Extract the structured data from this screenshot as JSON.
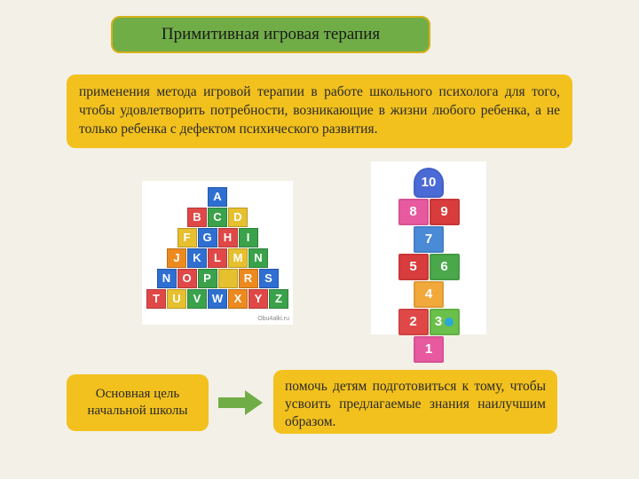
{
  "colors": {
    "page_bg": "#f3f0e7",
    "title_bg": "#70ad47",
    "title_border": "#d4b01a",
    "box_bg": "#f2c11e",
    "arrow_fill": "#70ad47",
    "text": "#2a2a2a"
  },
  "typography": {
    "title_fontsize": 19,
    "body_fontsize": 15.5,
    "goal_fontsize": 15,
    "font_family": "Georgia, Times New Roman, serif"
  },
  "title": "Примитивная игровая терапия",
  "description": "применения метода игровой терапии в работе школьного психолога для того, чтобы удовлетворить потребности, возникающие в жизни любого ребенка, а не только ребенка с дефектом психического развития.",
  "goal_label": "Основная цель начальной школы",
  "result_text": "помочь детям подготовиться к тому, чтобы усвоить предлагаемые знания наилучшим образом.",
  "alphabet_blocks": {
    "rows": [
      [
        {
          "l": "A",
          "c": "#2e6fd1"
        }
      ],
      [
        {
          "l": "B",
          "c": "#e04848"
        },
        {
          "l": "C",
          "c": "#3aa24a"
        },
        {
          "l": "D",
          "c": "#e6c02e"
        }
      ],
      [
        {
          "l": "F",
          "c": "#e6c02e"
        },
        {
          "l": "G",
          "c": "#2e6fd1"
        },
        {
          "l": "H",
          "c": "#e04848"
        },
        {
          "l": "I",
          "c": "#3aa24a"
        }
      ],
      [
        {
          "l": "J",
          "c": "#ed8a1f"
        },
        {
          "l": "K",
          "c": "#2e6fd1"
        },
        {
          "l": "L",
          "c": "#e04848"
        },
        {
          "l": "M",
          "c": "#e6c02e"
        },
        {
          "l": "N",
          "c": "#3aa24a"
        }
      ],
      [
        {
          "l": "N",
          "c": "#2e6fd1"
        },
        {
          "l": "O",
          "c": "#e04848"
        },
        {
          "l": "P",
          "c": "#3aa24a"
        },
        {
          "l": "",
          "c": "#e6c02e"
        },
        {
          "l": "R",
          "c": "#ed8a1f"
        },
        {
          "l": "S",
          "c": "#2e6fd1"
        }
      ],
      [
        {
          "l": "T",
          "c": "#e04848"
        },
        {
          "l": "U",
          "c": "#e6c02e"
        },
        {
          "l": "V",
          "c": "#3aa24a"
        },
        {
          "l": "W",
          "c": "#2e6fd1"
        },
        {
          "l": "X",
          "c": "#ed8a1f"
        },
        {
          "l": "Y",
          "c": "#e04848"
        },
        {
          "l": "Z",
          "c": "#3aa24a"
        }
      ]
    ],
    "watermark": "Obu4alki.ru"
  },
  "hopscotch": {
    "tiles": [
      [
        {
          "n": "1",
          "c": "#e85aa0"
        }
      ],
      [
        {
          "n": "2",
          "c": "#e04848"
        },
        {
          "n": "3",
          "c": "#6ac04a",
          "dot": true
        }
      ],
      [
        {
          "n": "4",
          "c": "#f2a93c"
        }
      ],
      [
        {
          "n": "5",
          "c": "#d83c3c"
        },
        {
          "n": "6",
          "c": "#4aa84a"
        }
      ],
      [
        {
          "n": "7",
          "c": "#4a8ad6"
        }
      ],
      [
        {
          "n": "8",
          "c": "#e85aa0"
        },
        {
          "n": "9",
          "c": "#d83c3c"
        }
      ],
      [
        {
          "n": "10",
          "c": "#4a6ad6",
          "top": true
        }
      ]
    ]
  }
}
